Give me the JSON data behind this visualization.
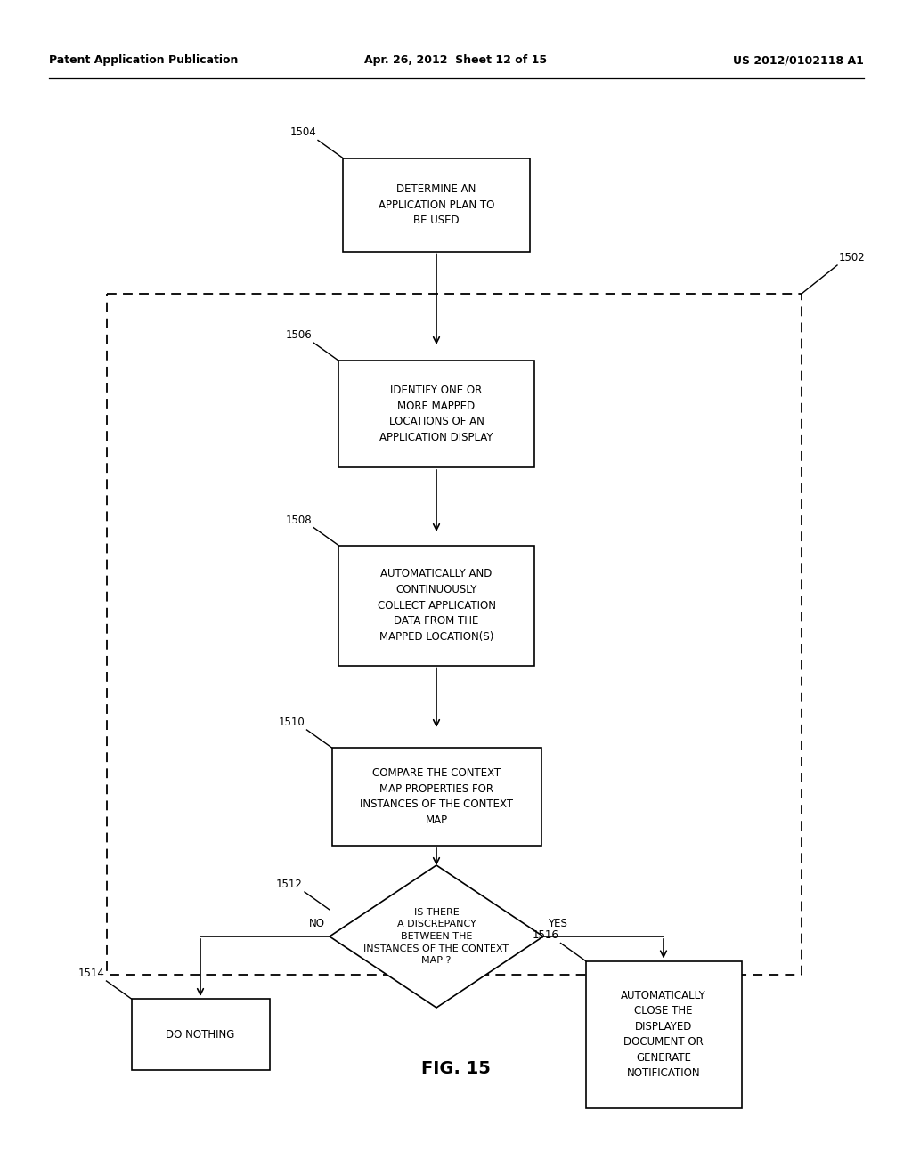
{
  "header_left": "Patent Application Publication",
  "header_mid": "Apr. 26, 2012  Sheet 12 of 15",
  "header_right": "US 2012/0102118 A1",
  "fig_label": "FIG. 15",
  "box1504_text": "DETERMINE AN\nAPPLICATION PLAN TO\nBE USED",
  "box1504_label": "1504",
  "box1506_text": "IDENTIFY ONE OR\nMORE MAPPED\nLOCATIONS OF AN\nAPPLICATION DISPLAY",
  "box1506_label": "1506",
  "box1508_text": "AUTOMATICALLY AND\nCONTINUOUSLY\nCOLLECT APPLICATION\nDATA FROM THE\nMAPPED LOCATION(S)",
  "box1508_label": "1508",
  "box1510_text": "COMPARE THE CONTEXT\nMAP PROPERTIES FOR\nINSTANCES OF THE CONTEXT\nMAP",
  "box1510_label": "1510",
  "diamond1512_text": "IS THERE\nA DISCREPANCY\nBETWEEN THE\nINSTANCES OF THE CONTEXT\nMAP ?",
  "diamond1512_label": "1512",
  "box1514_text": "DO NOTHING",
  "box1514_label": "1514",
  "box1516_text": "AUTOMATICALLY\nCLOSE THE\nDISPLAYED\nDOCUMENT OR\nGENERATE\nNOTIFICATION",
  "box1516_label": "1516",
  "dashed_box_label": "1502",
  "no_label": "NO",
  "yes_label": "YES",
  "background_color": "#ffffff",
  "box_color": "#ffffff",
  "box_edge_color": "#000000",
  "text_color": "#000000",
  "line_color": "#000000",
  "dashed_color": "#000000"
}
